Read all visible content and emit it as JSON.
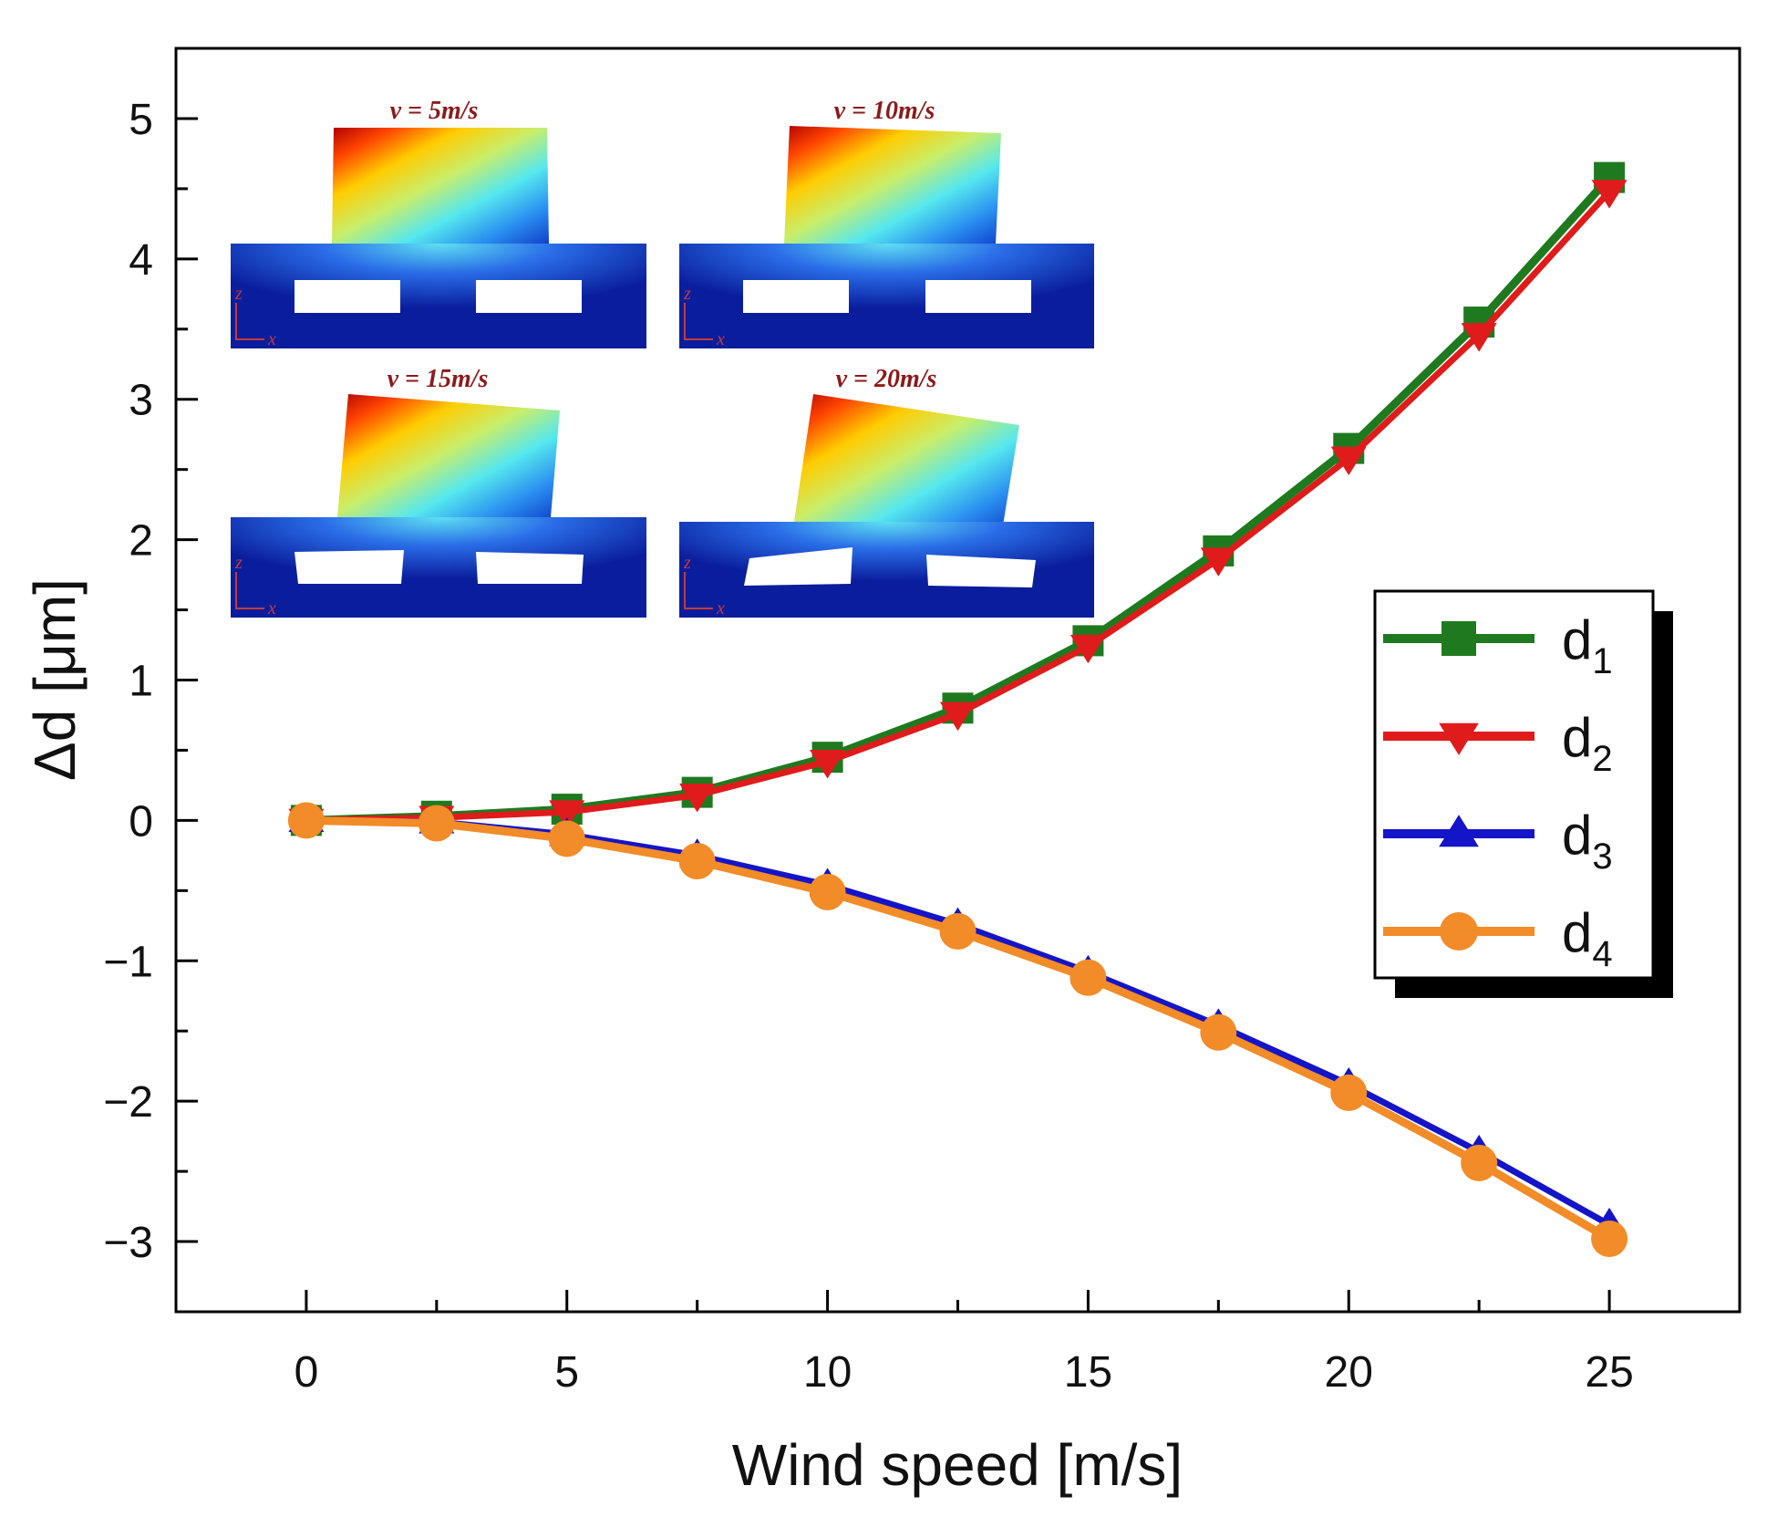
{
  "chart_data": {
    "type": "line",
    "xlabel": "Wind speed [m/s]",
    "ylabel": "Δd [μm]",
    "xlim": [
      -2.5,
      27.5
    ],
    "ylim": [
      -3.5,
      5.5
    ],
    "xticks": [
      0,
      5,
      10,
      15,
      20,
      25
    ],
    "yticks": [
      -3,
      -2,
      -1,
      0,
      1,
      2,
      3,
      4,
      5
    ],
    "xtick_labels": [
      "0",
      "5",
      "10",
      "15",
      "20",
      "25"
    ],
    "ytick_labels": [
      "−3",
      "−2",
      "−1",
      "0",
      "1",
      "2",
      "3",
      "4",
      "5"
    ],
    "grid": false,
    "legend_position": "center-right",
    "x": [
      0,
      2.5,
      5,
      7.5,
      10,
      12.5,
      15,
      17.5,
      20,
      22.5,
      25
    ],
    "series": [
      {
        "name": "d",
        "subscript": "1",
        "color": "#1f7a1f",
        "marker": "square",
        "values": [
          0,
          0.03,
          0.08,
          0.2,
          0.45,
          0.8,
          1.28,
          1.92,
          2.65,
          3.55,
          4.58
        ]
      },
      {
        "name": "d",
        "subscript": "2",
        "color": "#e01b1b",
        "marker": "triangle-down",
        "values": [
          0,
          0.02,
          0.06,
          0.18,
          0.42,
          0.76,
          1.24,
          1.86,
          2.58,
          3.46,
          4.48
        ]
      },
      {
        "name": "d",
        "subscript": "3",
        "color": "#1414c8",
        "marker": "triangle-up",
        "values": [
          0,
          -0.01,
          -0.1,
          -0.25,
          -0.46,
          -0.74,
          -1.08,
          -1.46,
          -1.88,
          -2.36,
          -2.88
        ]
      },
      {
        "name": "d",
        "subscript": "4",
        "color": "#f28c28",
        "marker": "circle",
        "values": [
          0,
          -0.02,
          -0.13,
          -0.29,
          -0.51,
          -0.79,
          -1.12,
          -1.51,
          -1.94,
          -2.44,
          -2.98
        ]
      }
    ],
    "annotations": {
      "inset_labels": [
        "v = 5m/s",
        "v = 10m/s",
        "v = 15m/s",
        "v = 20m/s"
      ],
      "axis_glyph_z": "z",
      "axis_glyph_x": "x"
    }
  }
}
